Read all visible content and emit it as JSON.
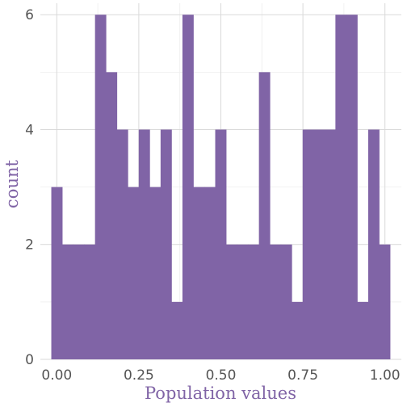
{
  "chart_data": {
    "type": "bar",
    "subtype": "histogram",
    "xlabel": "Population values",
    "ylabel": "count",
    "bin_width": 0.0333,
    "x_start": -0.0167,
    "counts": [
      3,
      2,
      2,
      2,
      6,
      5,
      4,
      3,
      4,
      3,
      4,
      1,
      6,
      3,
      3,
      4,
      2,
      2,
      2,
      5,
      2,
      2,
      1,
      4,
      4,
      4,
      6,
      6,
      1,
      4,
      2
    ],
    "xlim": [
      -0.05,
      1.05
    ],
    "ylim": [
      0,
      6.2
    ],
    "x_ticks": [
      0.0,
      0.25,
      0.5,
      0.75,
      1.0
    ],
    "x_tick_labels": [
      "0.00",
      "0.25",
      "0.50",
      "0.75",
      "1.00"
    ],
    "y_ticks": [
      0,
      2,
      4,
      6
    ],
    "y_tick_labels": [
      "0",
      "2",
      "4",
      "6"
    ],
    "grid": true,
    "colors": {
      "bar": "#8064a6",
      "axis_title": "#8064a6",
      "grid": "#d9d9d9"
    }
  }
}
